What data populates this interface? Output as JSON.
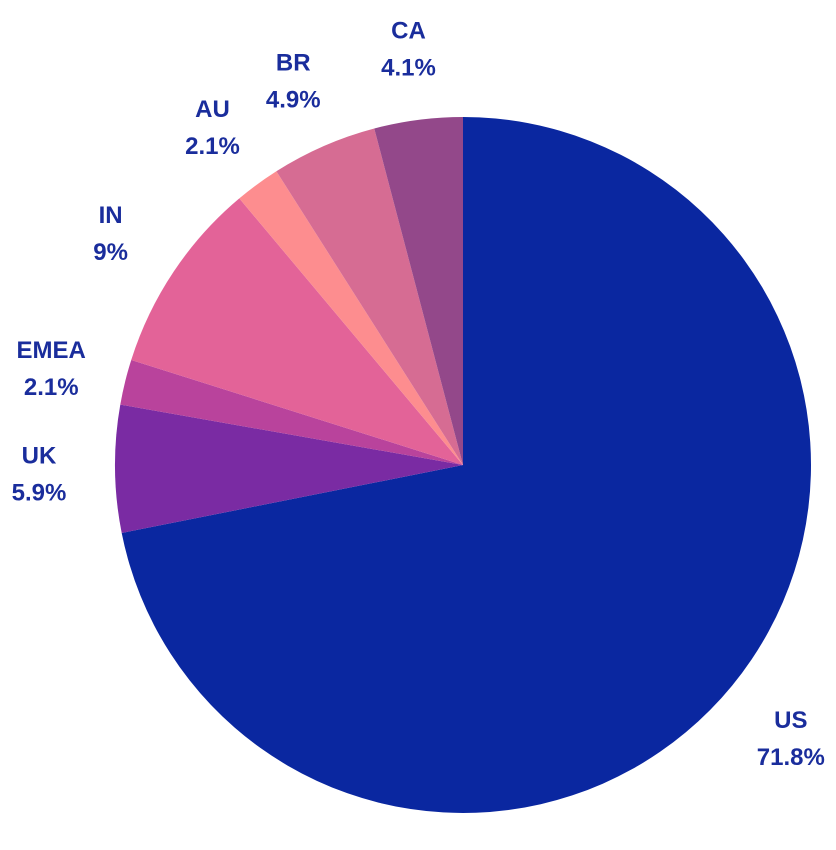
{
  "chart_data": {
    "type": "pie",
    "title": "",
    "slices": [
      {
        "label": "US",
        "value": 71.8,
        "display": "71.8%",
        "color": "#0a27a0"
      },
      {
        "label": "UK",
        "value": 5.9,
        "display": "5.9%",
        "color": "#7a2ba3"
      },
      {
        "label": "EMEA",
        "value": 2.1,
        "display": "2.1%",
        "color": "#b9439c"
      },
      {
        "label": "IN",
        "value": 9,
        "display": "9%",
        "color": "#e36398"
      },
      {
        "label": "AU",
        "value": 2.1,
        "display": "2.1%",
        "color": "#fd8d8f"
      },
      {
        "label": "BR",
        "value": 4.9,
        "display": "4.9%",
        "color": "#d66c93"
      },
      {
        "label": "CA",
        "value": 4.1,
        "display": "4.1%",
        "color": "#93488a"
      }
    ],
    "label_color": "#1a2d9c",
    "start_angle": "12 o'clock",
    "direction": "clockwise"
  }
}
